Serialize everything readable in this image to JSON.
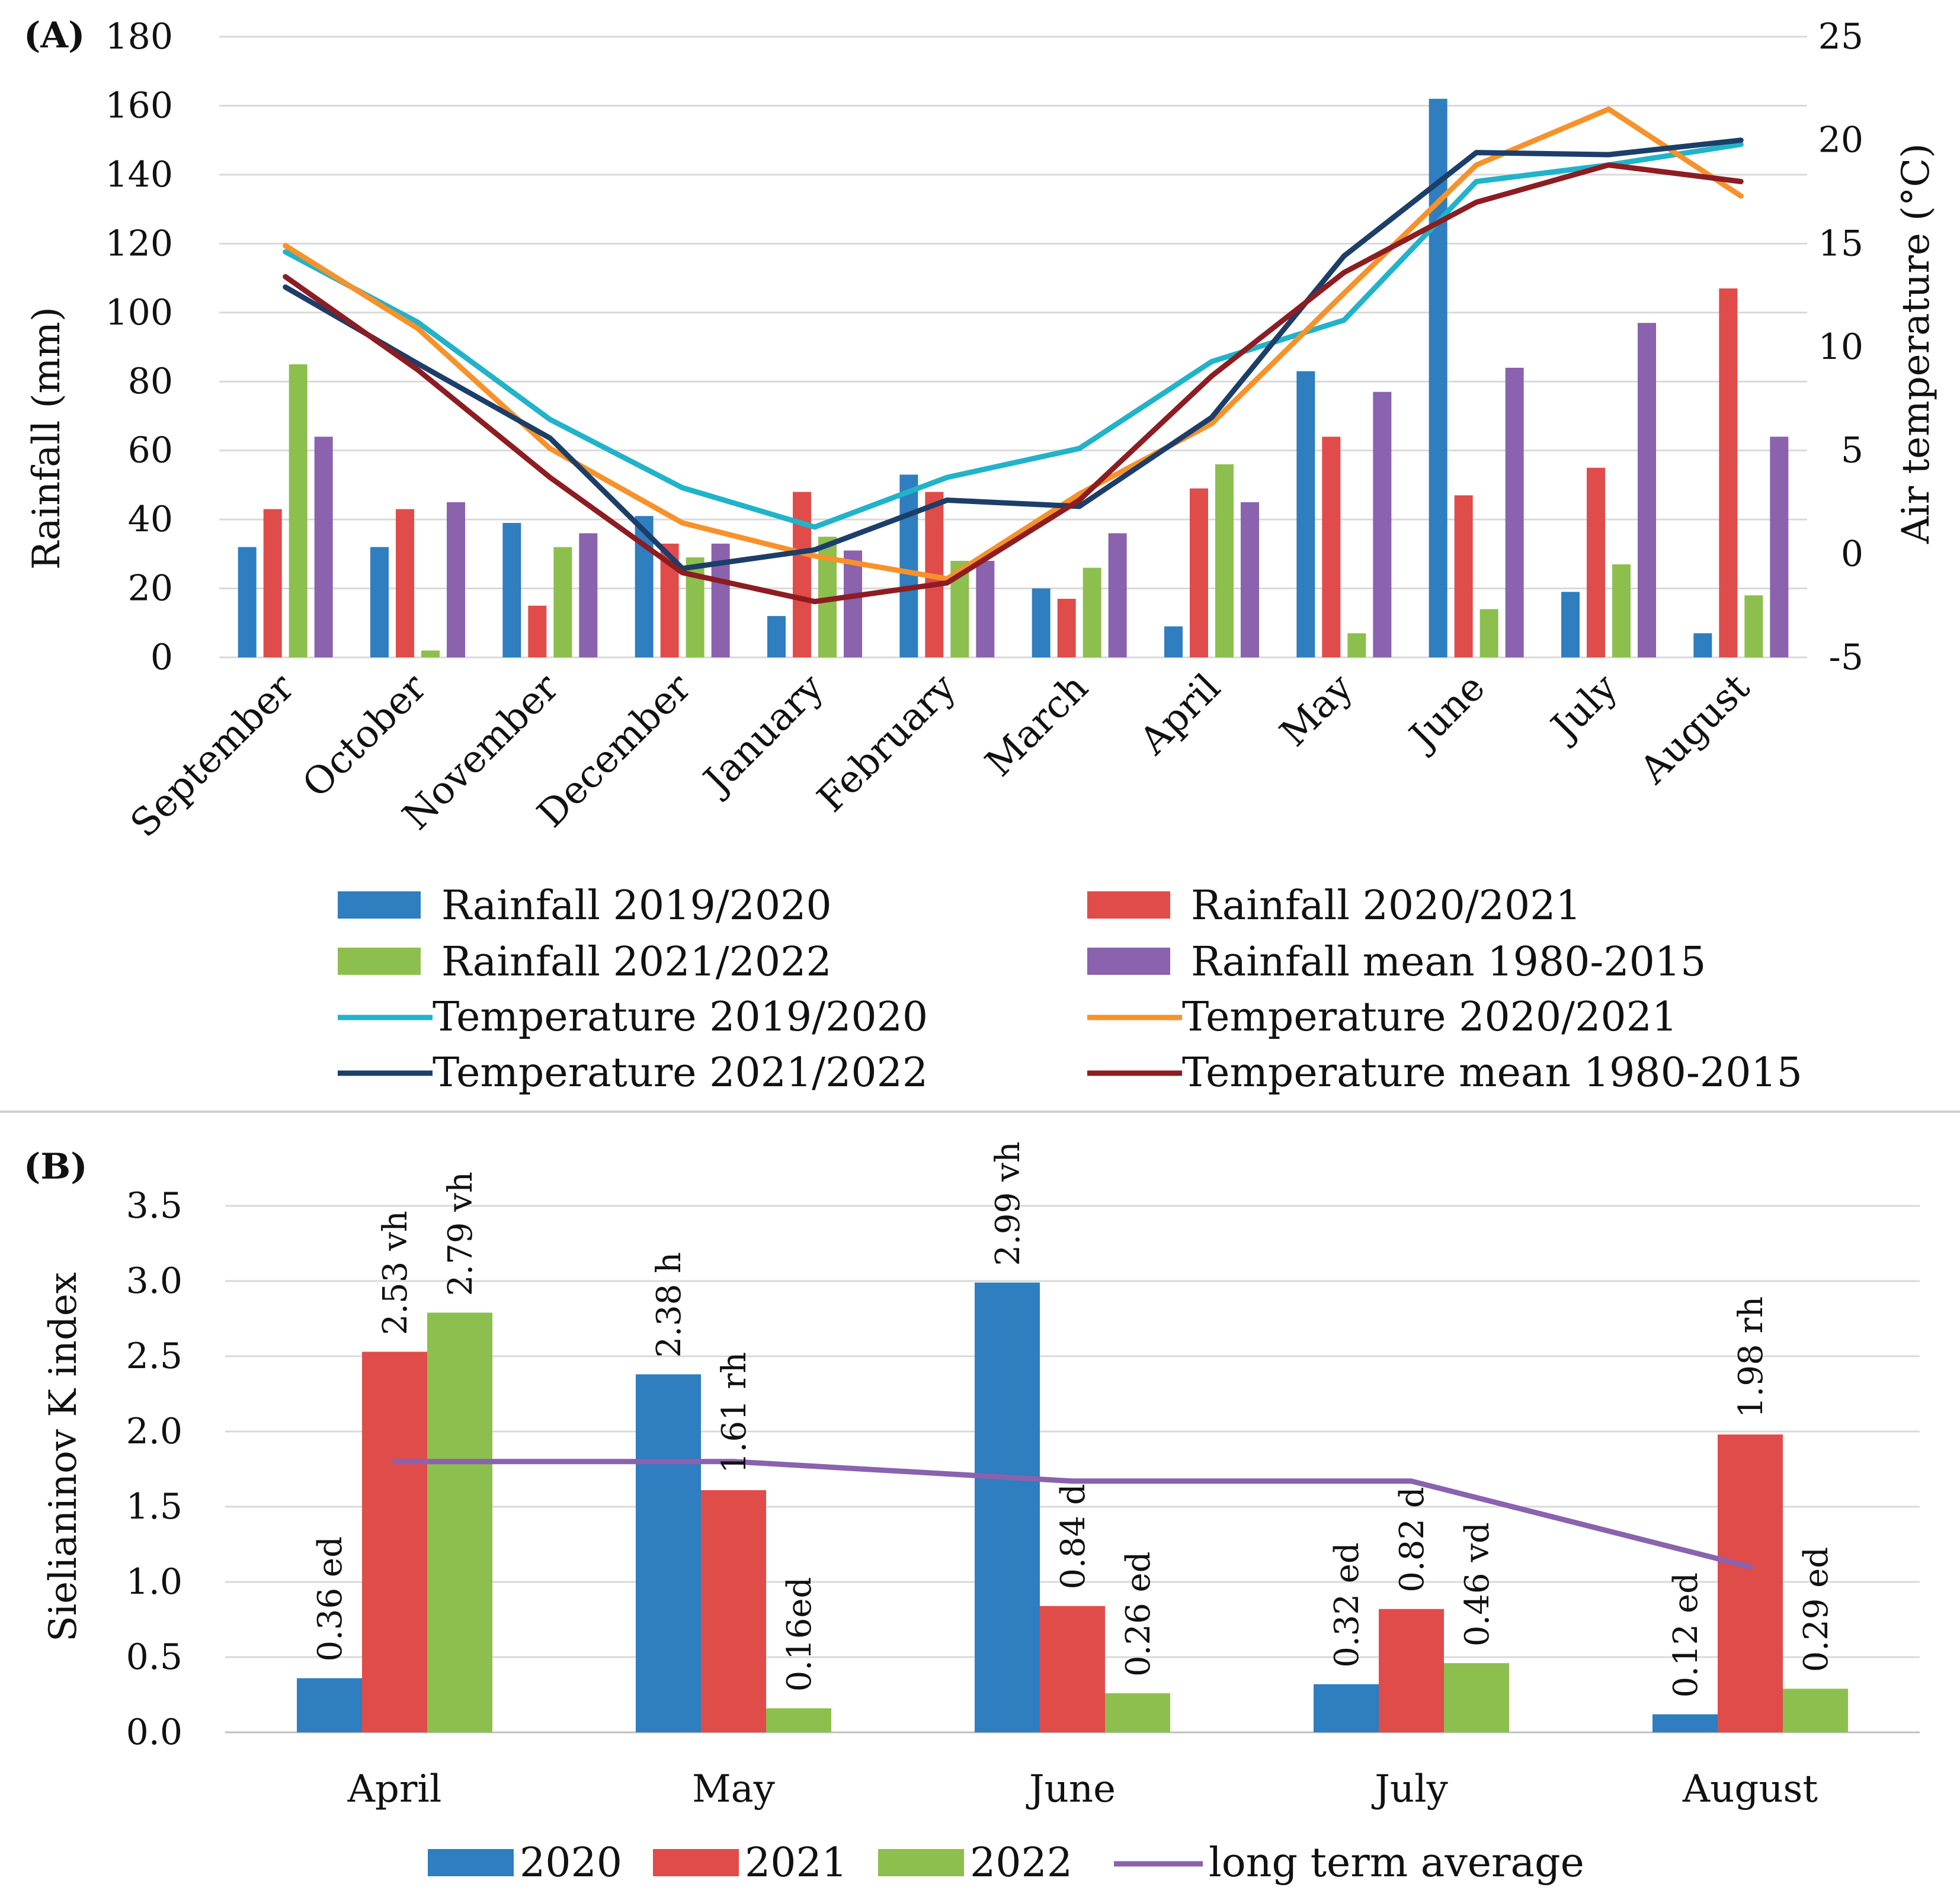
{
  "figure_labels": {
    "panel_a": "(A)",
    "panel_b": "(B)"
  },
  "colors": {
    "rain_2019_2020": "#2E7EC0",
    "rain_2020_2021": "#E04C4A",
    "rain_2021_2022": "#8CBF4D",
    "rain_mean": "#8A62AE",
    "temp_2019_2020": "#21B3C9",
    "temp_2020_2021": "#F7922B",
    "temp_2021_2022": "#1C3E69",
    "temp_mean": "#8C1D22",
    "k_2020": "#2E7EC0",
    "k_2021": "#E04C4A",
    "k_2022": "#8CBF4D",
    "k_avg": "#8A62AE"
  },
  "chart_data": [
    {
      "type": "bar+line",
      "panel": "(A)",
      "title": "",
      "categories": [
        "September",
        "October",
        "November",
        "December",
        "January",
        "February",
        "March",
        "April",
        "May",
        "June",
        "July",
        "August"
      ],
      "ylabel": "Rainfall (mm)",
      "ylim": [
        0,
        180
      ],
      "yticks": [
        0,
        20,
        40,
        60,
        80,
        100,
        120,
        140,
        160,
        180
      ],
      "y2label": "Air temperature (°C)",
      "y2lim": [
        -5,
        25
      ],
      "y2ticks": [
        -5,
        0,
        5,
        10,
        15,
        20,
        25
      ],
      "bar_series": [
        {
          "name": "Rainfall 2019/2020",
          "color_key": "rain_2019_2020",
          "values": [
            32,
            32,
            39,
            41,
            12,
            53,
            20,
            9,
            83,
            162,
            19,
            7
          ]
        },
        {
          "name": "Rainfall 2020/2021",
          "color_key": "rain_2020_2021",
          "values": [
            43,
            43,
            15,
            33,
            48,
            48,
            17,
            49,
            64,
            47,
            55,
            107
          ]
        },
        {
          "name": "Rainfall 2021/2022",
          "color_key": "rain_2021_2022",
          "values": [
            85,
            2,
            32,
            29,
            35,
            28,
            26,
            56,
            7,
            14,
            27,
            18
          ]
        },
        {
          "name": "Rainfall mean 1980-2015",
          "color_key": "rain_mean",
          "values": [
            64,
            45,
            36,
            33,
            31,
            28,
            36,
            45,
            77,
            84,
            97,
            64
          ]
        }
      ],
      "line_series": [
        {
          "name": "Temperature  2019/2020",
          "color_key": "temp_2019_2020",
          "values": [
            14.6,
            11.2,
            6.5,
            3.2,
            1.3,
            3.7,
            5.1,
            9.3,
            11.3,
            18.0,
            18.8,
            19.8
          ]
        },
        {
          "name": "Temperature  2020/2021",
          "color_key": "temp_2020_2021",
          "values": [
            14.9,
            10.9,
            5.1,
            1.5,
            -0.1,
            -1.2,
            2.9,
            6.3,
            12.6,
            18.8,
            21.5,
            17.3
          ]
        },
        {
          "name": "Temperature  2021/2022",
          "color_key": "temp_2021_2022",
          "values": [
            12.9,
            9.2,
            5.6,
            -0.7,
            0.2,
            2.6,
            2.3,
            6.6,
            14.4,
            19.4,
            19.3,
            20.0
          ]
        },
        {
          "name": "Temperature  mean 1980-2015",
          "color_key": "temp_mean",
          "values": [
            13.4,
            8.9,
            3.7,
            -0.9,
            -2.3,
            -1.4,
            2.6,
            8.6,
            13.6,
            17.0,
            18.8,
            18.0
          ]
        }
      ]
    },
    {
      "type": "bar+line",
      "panel": "(B)",
      "title": "",
      "categories": [
        "April",
        "May",
        "June",
        "July",
        "August"
      ],
      "ylabel": "Sielianinov K index",
      "ylim": [
        0,
        3.5
      ],
      "yticks": [
        "0.0",
        "0.5",
        "1.0",
        "1.5",
        "2.0",
        "2.5",
        "3.0",
        "3.5"
      ],
      "bar_series": [
        {
          "name": "2020",
          "color_key": "k_2020",
          "values": [
            0.36,
            2.38,
            2.99,
            0.32,
            0.12
          ],
          "labels": [
            "0.36 ed",
            "2.38 h",
            "2.99 vh",
            "0.32 ed",
            "0.12 ed"
          ]
        },
        {
          "name": "2021",
          "color_key": "k_2021",
          "values": [
            2.53,
            1.61,
            0.84,
            0.82,
            1.98
          ],
          "labels": [
            "2.53 vh",
            "1.61 rh",
            "0.84 d",
            "0.82 d",
            "1.98 rh"
          ]
        },
        {
          "name": "2022",
          "color_key": "k_2022",
          "values": [
            2.79,
            0.16,
            0.26,
            0.46,
            0.29
          ],
          "labels": [
            "2.79 vh",
            "0.16ed",
            "0.26 ed",
            "0.46 vd",
            "0.29 ed"
          ]
        }
      ],
      "line_series": [
        {
          "name": "long term average",
          "color_key": "k_avg",
          "values": [
            1.8,
            1.8,
            1.67,
            1.67,
            1.1
          ]
        }
      ]
    }
  ]
}
